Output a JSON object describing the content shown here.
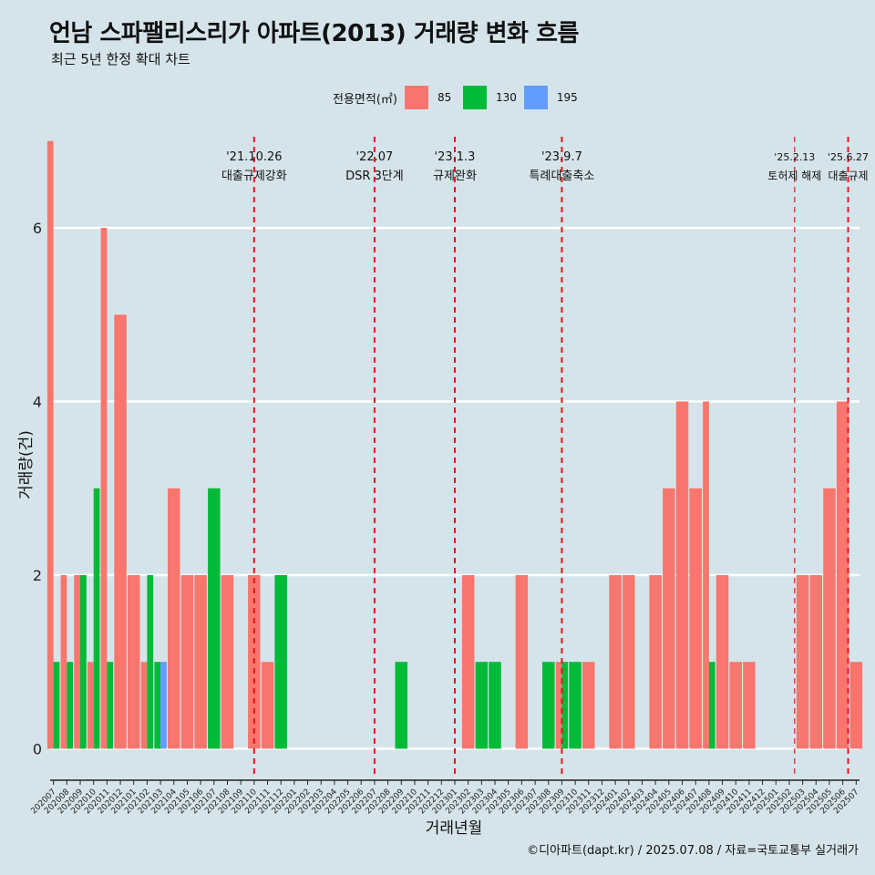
{
  "title": "언남 스파팰리스리가 아파트(2013) 거래량 변화 흐름",
  "subtitle": "최근 5년 한정 확대 차트",
  "caption": "©디아파트(dapt.kr) / 2025.07.08 / 자료=국토교통부 실거래가",
  "legend": {
    "title": "전용면적(㎡)",
    "items": [
      {
        "label": "85",
        "color": "#f8766d"
      },
      {
        "label": "130",
        "color": "#00ba38"
      },
      {
        "label": "195",
        "color": "#619cff"
      }
    ]
  },
  "chart_data": {
    "type": "bar",
    "xlabel": "거래년월",
    "ylabel": "거래량(건)",
    "ylim": [
      -0.3,
      7.05
    ],
    "yticks": [
      0,
      2,
      4,
      6
    ],
    "grid": true,
    "legend_position": "top",
    "categories": [
      "202007",
      "202008",
      "202009",
      "202010",
      "202011",
      "202012",
      "202101",
      "202102",
      "202103",
      "202104",
      "202105",
      "202106",
      "202107",
      "202108",
      "202109",
      "202110",
      "202111",
      "202112",
      "202201",
      "202202",
      "202203",
      "202204",
      "202205",
      "202206",
      "202207",
      "202208",
      "202209",
      "202210",
      "202211",
      "202212",
      "202301",
      "202302",
      "202303",
      "202304",
      "202305",
      "202306",
      "202307",
      "202308",
      "202309",
      "202310",
      "202311",
      "202312",
      "202401",
      "202402",
      "202403",
      "202404",
      "202405",
      "202406",
      "202407",
      "202408",
      "202409",
      "202410",
      "202411",
      "202412",
      "202501",
      "202502",
      "202503",
      "202504",
      "202505",
      "202506",
      "202507"
    ],
    "series": [
      {
        "name": "85",
        "color": "#f8766d",
        "values": [
          7,
          2,
          2,
          1,
          6,
          5,
          2,
          1,
          0,
          3,
          2,
          2,
          0,
          2,
          0,
          2,
          1,
          0,
          0,
          0,
          0,
          0,
          0,
          0,
          0,
          0,
          0,
          0,
          0,
          0,
          0,
          2,
          0,
          0,
          0,
          2,
          0,
          0,
          1,
          0,
          1,
          0,
          2,
          2,
          0,
          2,
          3,
          4,
          3,
          4,
          2,
          1,
          1,
          0,
          0,
          0,
          2,
          2,
          3,
          4,
          1
        ]
      },
      {
        "name": "130",
        "color": "#00ba38",
        "values": [
          1,
          1,
          2,
          3,
          1,
          0,
          0,
          2,
          1,
          0,
          0,
          0,
          3,
          0,
          0,
          0,
          0,
          2,
          0,
          0,
          0,
          0,
          0,
          0,
          0,
          0,
          1,
          0,
          0,
          0,
          0,
          0,
          1,
          1,
          0,
          0,
          0,
          1,
          1,
          1,
          0,
          0,
          0,
          0,
          0,
          0,
          0,
          0,
          0,
          1,
          0,
          0,
          0,
          0,
          0,
          0,
          0,
          0,
          0,
          0,
          0
        ]
      },
      {
        "name": "195",
        "color": "#619cff",
        "values": [
          0,
          0,
          0,
          0,
          0,
          0,
          0,
          0,
          1,
          0,
          0,
          0,
          0,
          0,
          0,
          0,
          0,
          0,
          0,
          0,
          0,
          0,
          0,
          0,
          0,
          0,
          0,
          0,
          0,
          0,
          0,
          0,
          0,
          0,
          0,
          0,
          0,
          0,
          0,
          0,
          0,
          0,
          0,
          0,
          0,
          0,
          0,
          0,
          0,
          0,
          0,
          0,
          0,
          0,
          0,
          0,
          0,
          0,
          0,
          0,
          0
        ]
      }
    ],
    "annotations": [
      {
        "position": 15,
        "date": "'21.10.26",
        "label": "대출규제강화"
      },
      {
        "position": 24,
        "date": "'22.07",
        "label": "DSR 3단계"
      },
      {
        "position": 30,
        "date": "'23.1.3",
        "label": "규제완화"
      },
      {
        "position": 38,
        "date": "'23.9.7",
        "label": "특례대출축소"
      },
      {
        "position": 55.4,
        "date": "'25.2.13",
        "label": "토허제 해제"
      },
      {
        "position": 59.4,
        "date": "'25.6.27",
        "label": "대출규제"
      }
    ]
  }
}
